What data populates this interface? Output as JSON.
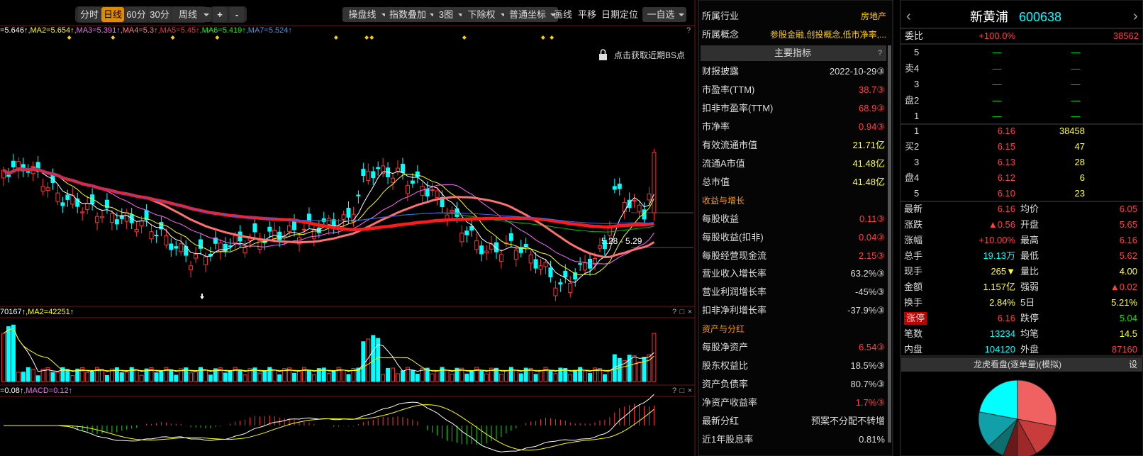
{
  "toolbar": {
    "periods": [
      "分时",
      "日线",
      "60分",
      "30分",
      "周线"
    ],
    "zoom": [
      "+",
      "-"
    ],
    "menus": [
      "操盘线",
      "指数叠加",
      "3图",
      "下除权",
      "普通坐标"
    ],
    "tools": [
      "画线",
      "平移",
      "日期定位"
    ],
    "watchlist": "一自选"
  },
  "chart": {
    "ma_labels": [
      {
        "text": "=5.646↑",
        "color": "#ffffff"
      },
      {
        "text": ",MA2=5.654↑",
        "color": "#ffff00"
      },
      {
        "text": ",MA3=5.391↑",
        "color": "#ff66ff"
      },
      {
        "text": ",MA4=5.3↑",
        "color": "#ff8080"
      },
      {
        "text": ",MA5=5.45↑",
        "color": "#ff3030"
      },
      {
        "text": ",MA6=5.419↑",
        "color": "#00ff00"
      },
      {
        "text": ",MA7=5.524↑",
        "color": "#3399ff"
      }
    ],
    "help": "?",
    "bs_hint": "点击获取近期BS点",
    "range_label": "5.28 - 5.29",
    "volume_labels": [
      {
        "text": "70167↑",
        "color": "#ffffff"
      },
      {
        "text": ",MA2=42251↑",
        "color": "#ffff00"
      }
    ],
    "macd_labels": [
      {
        "text": "=0.08↑",
        "color": "#ffffff"
      },
      {
        "text": ",MACD=0.12↑",
        "color": "#ff66ff"
      }
    ],
    "panel_controls": [
      "?",
      "□",
      "×"
    ]
  },
  "f10": {
    "top": [
      {
        "label": "所属行业",
        "value": "房地产"
      },
      {
        "label": "所属概念",
        "value": "参股金融,创投概念,低市净率,..."
      }
    ],
    "title": "主要指标",
    "help": "?",
    "rows": [
      {
        "label": "财报披露",
        "value": "2022-10-29③",
        "color": "#dddddd"
      },
      {
        "label": "市盈率(TTM)",
        "value": "38.7③",
        "color": "#ff4040"
      },
      {
        "label": "扣非市盈率(TTM)",
        "value": "68.9③",
        "color": "#ff4040"
      },
      {
        "label": "市净率",
        "value": "0.94③",
        "color": "#ff4040"
      },
      {
        "label": "有效流通市值",
        "value": "21.71亿",
        "color": "#ffff40"
      },
      {
        "label": "流通A市值",
        "value": "41.48亿",
        "color": "#ffff40"
      },
      {
        "label": "总市值",
        "value": "41.48亿",
        "color": "#ffff40"
      },
      {
        "section": "收益与增长"
      },
      {
        "label": "每股收益",
        "value": "0.11③",
        "color": "#ff4040"
      },
      {
        "label": "每股收益(扣非)",
        "value": "0.04③",
        "color": "#ff4040"
      },
      {
        "label": "每股经营现金流",
        "value": "2.15③",
        "color": "#ff4040"
      },
      {
        "label": "营业收入增长率",
        "value": "63.2%③",
        "color": "#dddddd"
      },
      {
        "label": "营业利润增长率",
        "value": "-45%③",
        "color": "#dddddd"
      },
      {
        "label": "扣非净利增长率",
        "value": "-37.9%③",
        "color": "#dddddd"
      },
      {
        "section": "资产与分红"
      },
      {
        "label": "每股净资产",
        "value": "6.54③",
        "color": "#ff4040"
      },
      {
        "label": "股东权益比",
        "value": "18.5%③",
        "color": "#dddddd"
      },
      {
        "label": "资产负债率",
        "value": "80.7%③",
        "color": "#dddddd"
      },
      {
        "label": "净资产收益率",
        "value": "1.7%③",
        "color": "#ff4040"
      },
      {
        "label": "最新分红",
        "value": "预案不分配不转增",
        "color": "#dddddd"
      },
      {
        "label": "近1年股息率",
        "value": "0.81%",
        "color": "#dddddd"
      }
    ]
  },
  "quote": {
    "name": "新黄浦",
    "code": "600638",
    "nav": [
      "‹",
      "›"
    ],
    "ratio": {
      "label": "委比",
      "value": "+100.0%",
      "volume": "38562"
    },
    "sell_side": [
      "卖",
      "盘"
    ],
    "buy_side": [
      "买",
      "盘"
    ],
    "sell": [
      {
        "level": "5",
        "price": "—",
        "volume": "—"
      },
      {
        "level": "4",
        "price": "—",
        "volume": "—"
      },
      {
        "level": "3",
        "price": "—",
        "volume": "—"
      },
      {
        "level": "2",
        "price": "—",
        "volume": "—"
      },
      {
        "level": "1",
        "price": "—",
        "volume": "—"
      }
    ],
    "buy": [
      {
        "level": "1",
        "price": "6.16",
        "volume": "38458"
      },
      {
        "level": "2",
        "price": "6.15",
        "volume": "47"
      },
      {
        "level": "3",
        "price": "6.13",
        "volume": "28"
      },
      {
        "level": "4",
        "price": "6.12",
        "volume": "6"
      },
      {
        "level": "5",
        "price": "6.10",
        "volume": "23"
      }
    ],
    "stats": [
      {
        "label": "最新",
        "value": "6.16",
        "color": "#ff4040",
        "label2": "均价",
        "value2": "6.05",
        "color2": "#ff4040"
      },
      {
        "label": "涨跌",
        "value": "▲0.56",
        "color": "#ff4040",
        "label2": "开盘",
        "value2": "5.65",
        "color2": "#ff4040"
      },
      {
        "label": "涨幅",
        "value": "+10.00%",
        "color": "#ff4040",
        "label2": "最高",
        "value2": "6.16",
        "color2": "#ff4040"
      },
      {
        "label": "总手",
        "value": "19.13万",
        "color": "#00ffff",
        "label2": "最低",
        "value2": "5.62",
        "color2": "#ff4040"
      },
      {
        "label": "现手",
        "value": "265▼",
        "color": "#ffff40",
        "label2": "量比",
        "value2": "4.00",
        "color2": "#ffff40"
      },
      {
        "label": "金额",
        "value": "1.157亿",
        "color": "#ffff40",
        "label2": "强弱",
        "value2": "▲0.02",
        "color2": "#ff4040"
      },
      {
        "label": "换手",
        "value": "2.84%",
        "color": "#ffff40",
        "label2": "5日",
        "value2": "5.21%",
        "color2": "#ffff40"
      },
      {
        "label": "涨停",
        "value": "6.16",
        "color": "#ff4040",
        "label2": "跌停",
        "value2": "5.04",
        "color2": "#00e000",
        "label_bg": "#c00000"
      },
      {
        "label": "笔数",
        "value": "13234",
        "color": "#00ffff",
        "label2": "均笔",
        "value2": "14.5",
        "color2": "#ffff40"
      },
      {
        "label": "内盘",
        "value": "104120",
        "color": "#00ffff",
        "label2": "外盘",
        "value2": "87160",
        "color2": "#ff4040"
      }
    ],
    "dragon_title": "龙虎看盘(逐单量)(模拟)",
    "settings": "设"
  },
  "chart_data": {
    "type": "pie",
    "values": [
      28,
      14,
      8,
      6,
      7,
      15,
      22
    ],
    "colors": [
      "#f06262",
      "#c83c3c",
      "#9c2828",
      "#6a1818",
      "#0e6e6e",
      "#12a0a8",
      "#00ffff"
    ]
  }
}
